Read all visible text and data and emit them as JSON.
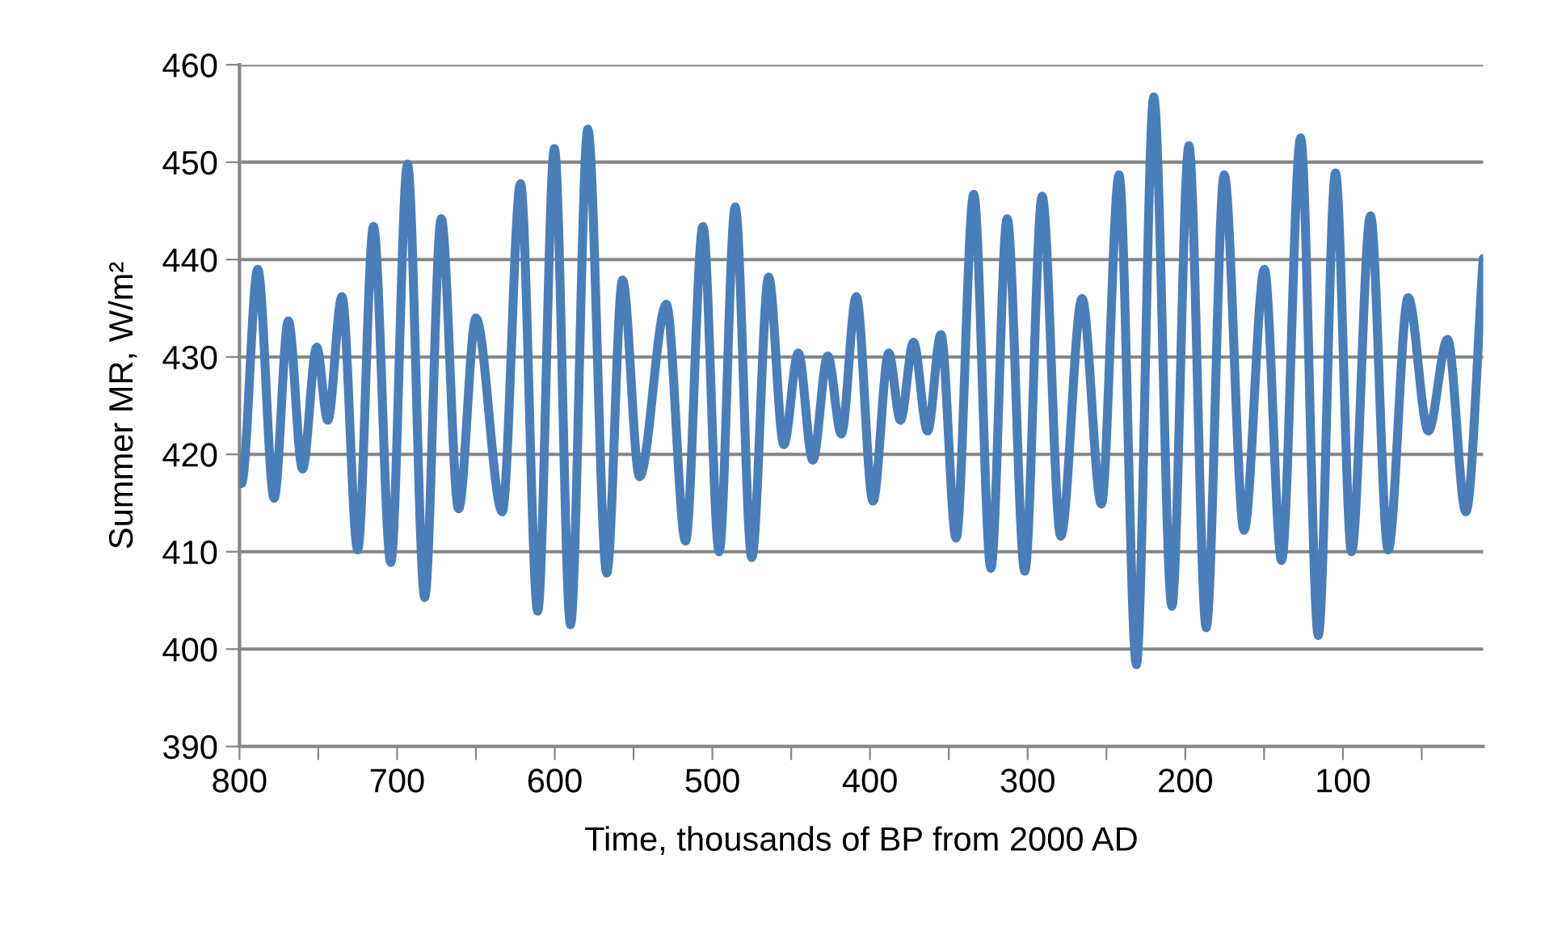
{
  "chart_data": {
    "type": "line",
    "xlabel": "Time, thousands of BP from 2000 AD",
    "ylabel": "Summer MR, W/m²",
    "xlim": [
      800,
      11
    ],
    "ylim": [
      390,
      460
    ],
    "xticks": [
      800,
      {
        "value": 750,
        "label": null
      },
      700,
      {
        "value": 650,
        "label": null
      },
      600,
      {
        "value": 550,
        "label": null
      },
      500,
      {
        "value": 450,
        "label": null
      },
      400,
      {
        "value": 350,
        "label": null
      },
      300,
      {
        "value": 250,
        "label": null
      },
      200,
      {
        "value": 150,
        "label": null
      },
      100,
      {
        "value": 50,
        "label": null
      }
    ],
    "yticks": [
      390,
      400,
      410,
      420,
      430,
      440,
      450,
      460
    ],
    "grid": "y",
    "legend": false,
    "marker": "none",
    "line_style": "solid",
    "series": [
      {
        "color": "#4a7ebb",
        "x": [
          800,
          798.7,
          788.4,
          778,
          769,
          760,
          751,
          744,
          735,
          725,
          715,
          704,
          693.4,
          682.5,
          672,
          661,
          650,
          633.3,
          621.7,
          610.8,
          600.2,
          590,
          579,
          567,
          557,
          546.2,
          529.2,
          517,
          506,
          495.7,
          485.5,
          475,
          464.3,
          454.7,
          445.5,
          436.3,
          426.8,
          418.2,
          408.7,
          398.1,
          388.1,
          380.7,
          372.4,
          363.5,
          355,
          345.4,
          334.2,
          323.3,
          313,
          301.8,
          290.8,
          279,
          265.5,
          253.2,
          242,
          231,
          220,
          208.5,
          197.7,
          186.7,
          175.3,
          162.7,
          149.8,
          138.9,
          126.8,
          115.6,
          104.7,
          94.5,
          82.5,
          71.3,
          58.6,
          45.8,
          33.6,
          22,
          11
        ],
        "values": [
          419,
          417,
          439,
          415.5,
          433.7,
          418.5,
          431,
          423.5,
          436.2,
          410.2,
          443.4,
          408.9,
          449.8,
          405.3,
          444.2,
          414.4,
          434,
          414.1,
          447.8,
          403.9,
          451.4,
          402.5,
          453.4,
          407.8,
          437.9,
          417.7,
          435.4,
          411.1,
          443.4,
          410,
          445.4,
          409.4,
          438.2,
          421,
          430.4,
          419.4,
          430.1,
          422.1,
          436.2,
          415.2,
          430.4,
          423.5,
          431.5,
          422.4,
          432.3,
          411.4,
          446.7,
          408.3,
          444.2,
          408,
          446.5,
          411.6,
          436,
          414.9,
          448.7,
          398.4,
          456.7,
          404.4,
          451.7,
          402.2,
          448.7,
          412.2,
          439,
          409.1,
          452.5,
          401.4,
          448.9,
          410,
          444.5,
          410.2,
          436.1,
          422.4,
          431.8,
          414.1,
          440.1
        ]
      }
    ]
  }
}
